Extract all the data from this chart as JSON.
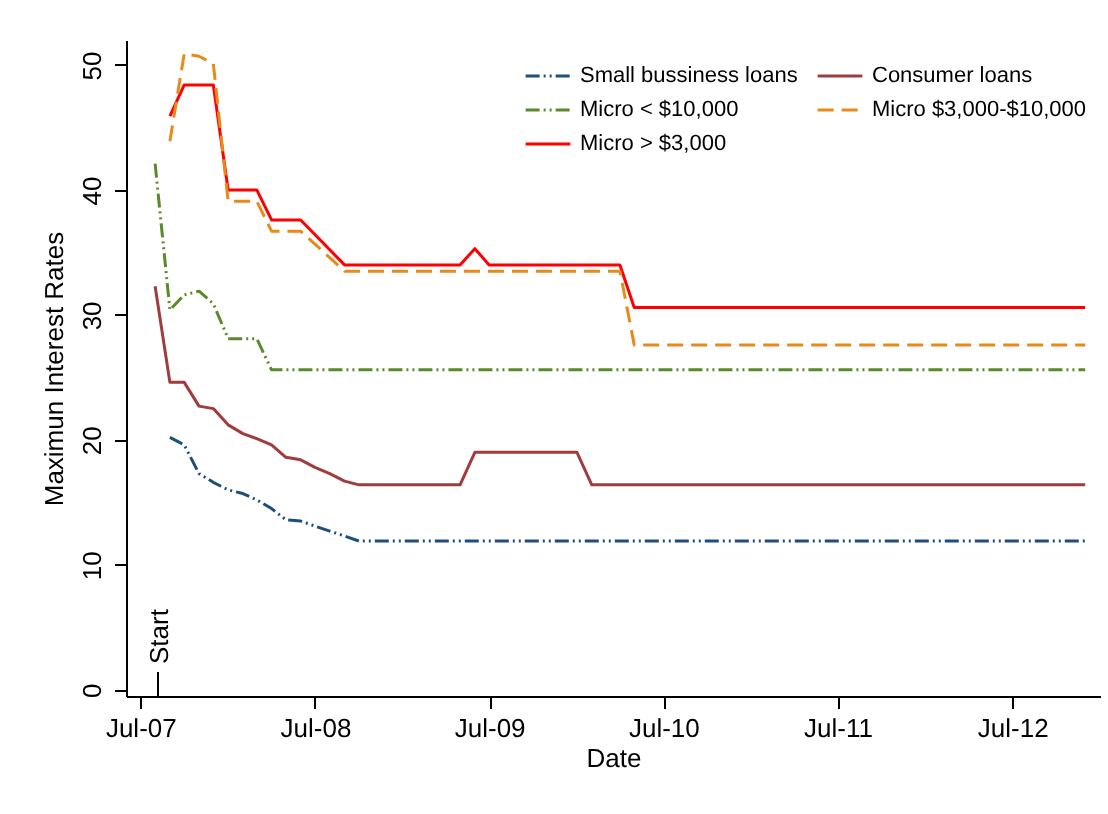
{
  "chart_data": {
    "type": "line",
    "xlabel": "Date",
    "ylabel": "Maximun Interest Rates",
    "xlim": [
      "2007-06",
      "2013-01"
    ],
    "ylim": [
      -0.5,
      52
    ],
    "xticks": [
      {
        "value": "2007-07",
        "label": "Jul-07"
      },
      {
        "value": "2008-07",
        "label": "Jul-08"
      },
      {
        "value": "2009-07",
        "label": "Jul-09"
      },
      {
        "value": "2010-07",
        "label": "Jul-10"
      },
      {
        "value": "2011-07",
        "label": "Jul-11"
      },
      {
        "value": "2012-07",
        "label": "Jul-12"
      }
    ],
    "yticks": [
      0,
      10,
      20,
      30,
      40,
      50
    ],
    "grid": false,
    "legend": "top right",
    "annotations": [
      "Start"
    ],
    "series": [
      {
        "name": "Small bussiness loans",
        "color": "#1f4e79",
        "line_style": "dotted",
        "x": [
          "2007-09",
          "2007-10",
          "2007-11",
          "2007-12",
          "2008-01",
          "2008-02",
          "2008-03",
          "2008-04",
          "2008-05",
          "2008-06",
          "2008-07",
          "2008-08",
          "2008-09",
          "2008-10",
          "2012-12"
        ],
        "values": [
          20.2,
          19.6,
          17.3,
          16.6,
          16.0,
          15.7,
          15.2,
          14.5,
          13.6,
          13.5,
          13.1,
          12.7,
          12.3,
          11.9,
          11.9
        ]
      },
      {
        "name": "Micro < $10,000",
        "color": "#5a8a2a",
        "line_style": "dotted",
        "x": [
          "2007-08",
          "2007-09",
          "2007-10",
          "2007-11",
          "2007-12",
          "2008-01",
          "2008-03",
          "2008-04",
          "2012-12"
        ],
        "values": [
          42.1,
          30.4,
          31.6,
          31.9,
          30.9,
          28.1,
          28.1,
          25.6,
          25.6
        ]
      },
      {
        "name": "Micro > $3,000",
        "color": "#ff0000",
        "line_style": "solid",
        "x": [
          "2007-09",
          "2007-10",
          "2007-12",
          "2008-01",
          "2008-03",
          "2008-04",
          "2008-06",
          "2008-09",
          "2009-05",
          "2009-06",
          "2009-07",
          "2010-04",
          "2010-05",
          "2012-12"
        ],
        "values": [
          45.9,
          48.4,
          48.4,
          40.0,
          40.0,
          37.6,
          37.6,
          34.0,
          34.0,
          35.3,
          34.0,
          34.0,
          30.6,
          30.6
        ]
      },
      {
        "name": "Consumer loans",
        "color": "#a03c3c",
        "line_style": "solid",
        "x": [
          "2007-08",
          "2007-09",
          "2007-10",
          "2007-11",
          "2007-12",
          "2008-01",
          "2008-02",
          "2008-03",
          "2008-04",
          "2008-05",
          "2008-06",
          "2008-07",
          "2008-08",
          "2008-09",
          "2008-10",
          "2009-05",
          "2009-06",
          "2010-01",
          "2010-02",
          "2012-12"
        ],
        "values": [
          32.3,
          24.6,
          24.6,
          22.7,
          22.5,
          21.2,
          20.5,
          20.1,
          19.6,
          18.6,
          18.4,
          17.8,
          17.3,
          16.7,
          16.4,
          16.4,
          19.0,
          19.0,
          16.4,
          16.4
        ]
      },
      {
        "name": "Micro $3,000-$10,000",
        "color": "#e88a1a",
        "line_style": "dashed",
        "x": [
          "2007-09",
          "2007-10",
          "2007-11",
          "2007-12",
          "2008-01",
          "2008-03",
          "2008-04",
          "2008-06",
          "2008-09",
          "2010-04",
          "2010-05",
          "2012-12"
        ],
        "values": [
          43.9,
          50.9,
          50.7,
          50.1,
          39.1,
          39.1,
          36.7,
          36.7,
          33.5,
          33.5,
          27.6,
          27.6
        ]
      }
    ]
  }
}
